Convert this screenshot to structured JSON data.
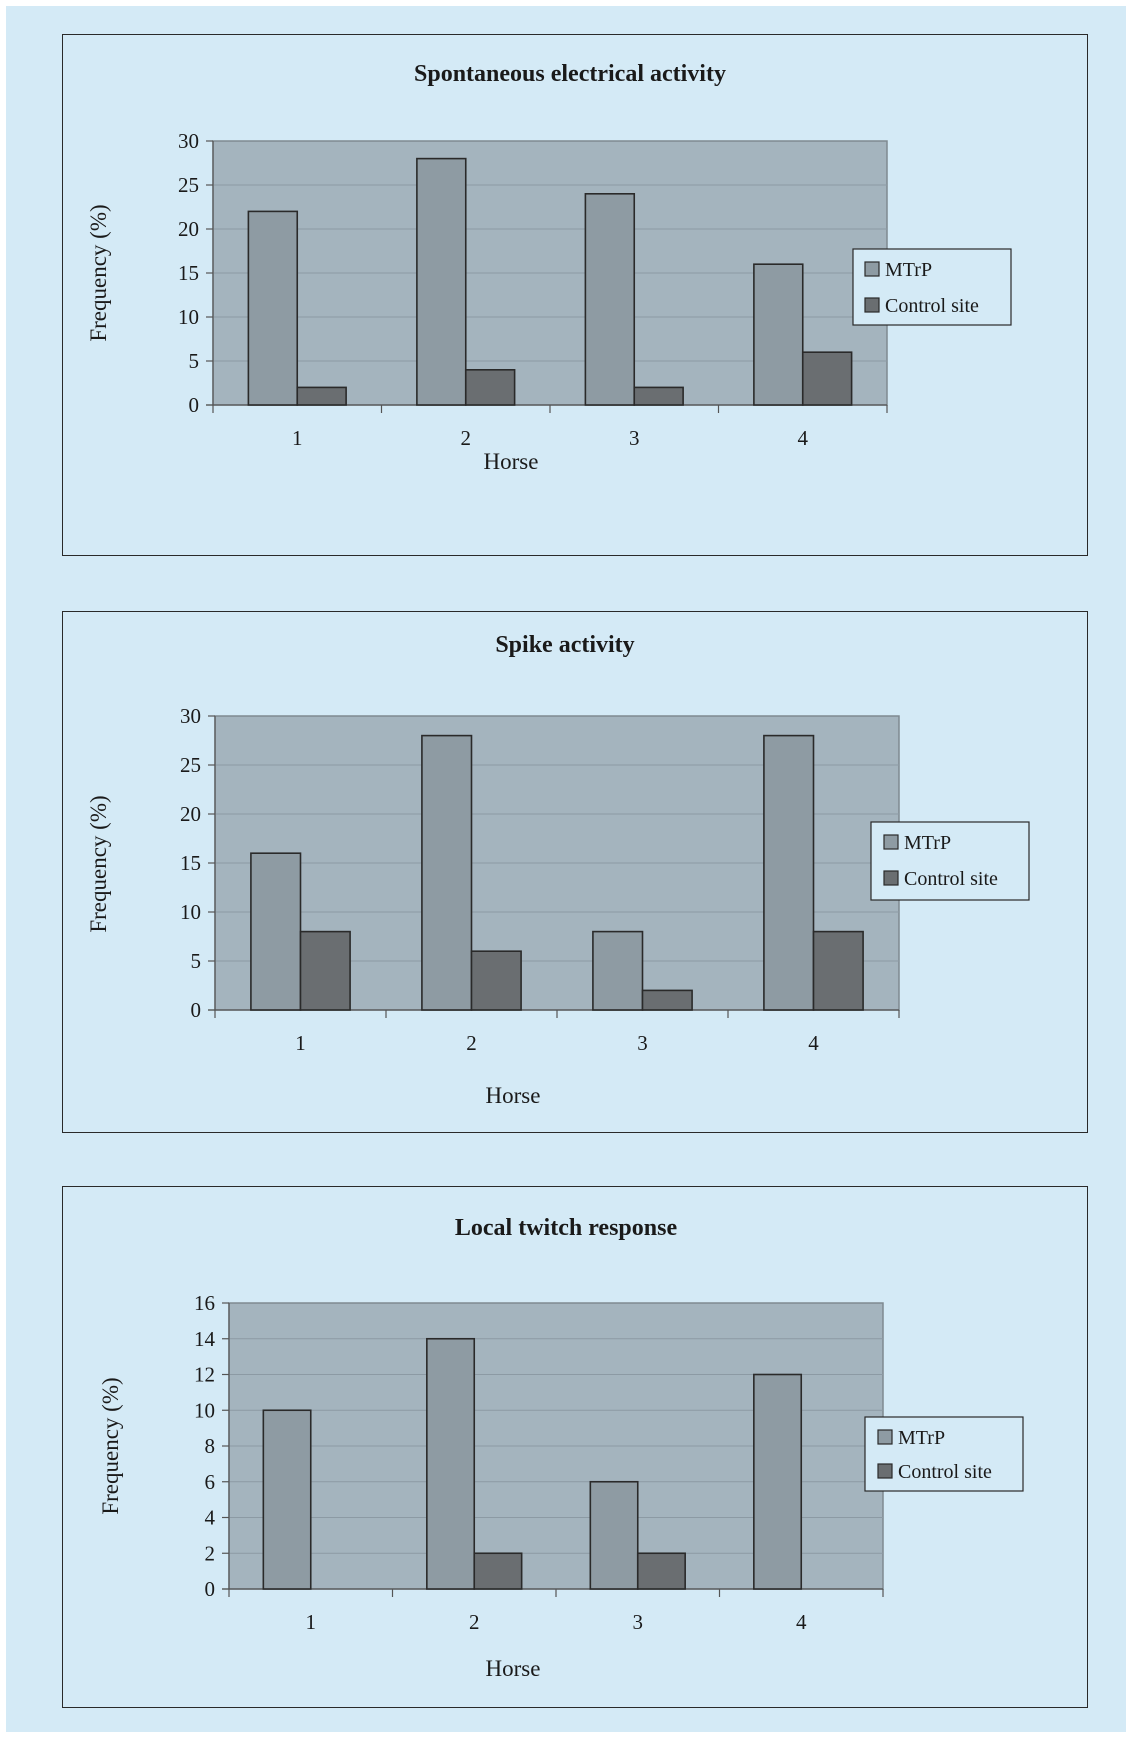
{
  "colors": {
    "background": "#d4eaf6",
    "plot_area": "#a4b4be",
    "gridline": "#8c9aa4",
    "mtrp": "#8e9ba3",
    "control": "#6a6e71",
    "outline": "#2a2a2a"
  },
  "chart_data": [
    {
      "type": "bar",
      "title": "Spontaneous electrical activity",
      "xlabel": "Horse",
      "ylabel": "Frequency (%)",
      "categories": [
        "1",
        "2",
        "3",
        "4"
      ],
      "ylim": [
        0,
        30
      ],
      "yticks": [
        "0",
        "5",
        "10",
        "15",
        "20",
        "25",
        "30"
      ],
      "grid": true,
      "legend_position": "right",
      "series": [
        {
          "name": "MTrP",
          "values": [
            22,
            28,
            24,
            16
          ]
        },
        {
          "name": "Control site",
          "values": [
            2,
            4,
            2,
            6
          ]
        }
      ]
    },
    {
      "type": "bar",
      "title": "Spike activity",
      "xlabel": "Horse",
      "ylabel": "Frequency (%)",
      "categories": [
        "1",
        "2",
        "3",
        "4"
      ],
      "ylim": [
        0,
        30
      ],
      "yticks": [
        "0",
        "5",
        "10",
        "15",
        "20",
        "25",
        "30"
      ],
      "grid": true,
      "legend_position": "right",
      "series": [
        {
          "name": "MTrP",
          "values": [
            16,
            28,
            8,
            28
          ]
        },
        {
          "name": "Control site",
          "values": [
            8,
            6,
            2,
            8
          ]
        }
      ]
    },
    {
      "type": "bar",
      "title": "Local twitch response",
      "xlabel": "Horse",
      "ylabel": "Frequency (%)",
      "categories": [
        "1",
        "2",
        "3",
        "4"
      ],
      "ylim": [
        0,
        16
      ],
      "yticks": [
        "0",
        "2",
        "4",
        "6",
        "8",
        "10",
        "12",
        "14",
        "16"
      ],
      "grid": true,
      "legend_position": "right",
      "series": [
        {
          "name": "MTrP",
          "values": [
            10,
            14,
            6,
            12
          ]
        },
        {
          "name": "Control site",
          "values": [
            0,
            2,
            2,
            0
          ]
        }
      ]
    }
  ]
}
